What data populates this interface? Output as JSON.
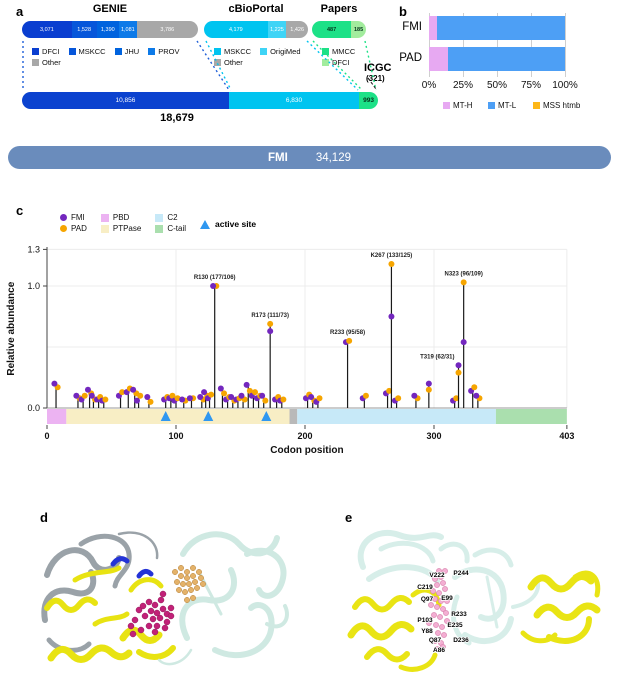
{
  "figure": {
    "panel_labels": {
      "a": "a",
      "b": "b",
      "c": "c",
      "d": "d",
      "e": "e"
    }
  },
  "chart_data": [
    {
      "id": "genie",
      "type": "bar",
      "title": "GENIE",
      "total": 10856,
      "segments": [
        {
          "label": "DFCI",
          "display": "3,071",
          "value": 3071,
          "color": "#0a3ed0"
        },
        {
          "label": "MSKCC",
          "display": "1,528",
          "value": 1528,
          "color": "#0656da"
        },
        {
          "label": "JHU",
          "display": "1,390",
          "value": 1390,
          "color": "#0063de"
        },
        {
          "label": "PROV",
          "display": "1,081",
          "value": 1081,
          "color": "#0d7ae8"
        },
        {
          "label": "Other",
          "display": "3,786",
          "value": 3786,
          "color": "#a8a8a8"
        }
      ],
      "legend_rows": [
        [
          "DFCI",
          "MSKCC",
          "JHU",
          "PROV"
        ],
        [
          "Other"
        ]
      ]
    },
    {
      "id": "cbioportal",
      "type": "bar",
      "title": "cBioPortal",
      "total": 6830,
      "segments": [
        {
          "label": "MSKCC",
          "display": "4,179",
          "value": 4179,
          "color": "#00c4f0"
        },
        {
          "label": "OrigiMed",
          "display": "1,225",
          "value": 1225,
          "color": "#3fd4f6"
        },
        {
          "label": "Other",
          "display": "1,426",
          "value": 1426,
          "color": "#a8a8a8"
        }
      ],
      "legend_rows": [
        [
          "MSKCC",
          "OrigiMed"
        ],
        [
          "Other"
        ]
      ]
    },
    {
      "id": "papers",
      "type": "bar",
      "title": "Papers",
      "total": 672,
      "segments": [
        {
          "label": "MMCC",
          "display": "487",
          "value": 487,
          "color": "#1de187",
          "text_color": "#05371e"
        },
        {
          "label": "DFCI",
          "display": "185",
          "value": 185,
          "color": "#a2ec9d",
          "text_color": "#05371e"
        }
      ],
      "legend_rows": [
        [
          "MMCC"
        ],
        [
          "DFCI"
        ]
      ],
      "annotation": {
        "label": "ICGC",
        "value": "(321)"
      }
    },
    {
      "id": "combined",
      "type": "bar",
      "total": 18679,
      "total_display": "18,679",
      "segments": [
        {
          "label": "GENIE",
          "display": "10,856",
          "value": 10856,
          "color": "#0b42cf"
        },
        {
          "label": "cBioPortal",
          "display": "6,830",
          "value": 6830,
          "color": "#00c4f0"
        },
        {
          "label": "ICGC",
          "display": "993",
          "value": 993,
          "color": "#1de187",
          "text_color": "#06321c"
        }
      ]
    },
    {
      "id": "fmi-total",
      "type": "bar",
      "label": "FMI",
      "display": "34,129",
      "color": "#6a8cbc"
    },
    {
      "id": "tmb",
      "type": "bar",
      "orientation": "horizontal-stacked",
      "categories": [
        "FMI",
        "PAD"
      ],
      "series": [
        {
          "name": "MT-H",
          "color": "#e7a9f2",
          "values": [
            6,
            14
          ]
        },
        {
          "name": "MT-L",
          "color": "#4d9ff5",
          "values": [
            94,
            86
          ]
        },
        {
          "name": "MSS htmb",
          "color": "#fdb718",
          "values": [
            0,
            0
          ]
        }
      ],
      "xticks": [
        "0%",
        "25%",
        "50%",
        "75%",
        "100%"
      ],
      "xlim": [
        0,
        100
      ]
    },
    {
      "id": "lollipop",
      "type": "scatter",
      "xlabel": "Codon position",
      "ylabel": "Relative abundance",
      "xlim": [
        0,
        403
      ],
      "ylim": [
        0,
        1.3
      ],
      "yticks": [
        {
          "label": "0.0",
          "value": 0
        },
        {
          "label": "1.0",
          "value": 1
        },
        {
          "label": "1.3",
          "value": 1.3
        }
      ],
      "xticks": [
        {
          "label": "0",
          "value": 0
        },
        {
          "label": "100",
          "value": 100
        },
        {
          "label": "200",
          "value": 200
        },
        {
          "label": "300",
          "value": 300
        },
        {
          "label": "403",
          "value": 403
        }
      ],
      "gridlines_y": [
        0.5,
        1.0,
        1.3
      ],
      "series_legend": [
        {
          "label": "FMI",
          "color": "#7327be"
        },
        {
          "label": "PAD",
          "color": "#f6a500"
        }
      ],
      "active_site": {
        "label": "active site",
        "color": "#2f97f0",
        "positions": [
          92,
          125,
          170
        ]
      },
      "domains": [
        {
          "name": "PBD",
          "color": "#ecb3f2",
          "start": 0,
          "end": 15
        },
        {
          "name": "PTPase",
          "color": "#f8eec5",
          "start": 15,
          "end": 188
        },
        {
          "name": "",
          "color": "#b9b9b9",
          "start": 188,
          "end": 194
        },
        {
          "name": "C2",
          "color": "#c7e9f8",
          "start": 194,
          "end": 348
        },
        {
          "name": "C-tail",
          "color": "#aadfae",
          "start": 348,
          "end": 403
        }
      ],
      "domain_legend": [
        [
          "PBD",
          "C2"
        ],
        [
          "PTPase",
          "C-tail"
        ]
      ],
      "points": [
        {
          "pos": 7,
          "fmi": 0.2,
          "pad": 0.17
        },
        {
          "pos": 24,
          "fmi": 0.1,
          "pad": 0.08
        },
        {
          "pos": 28,
          "fmi": 0.07,
          "pad": 0.1
        },
        {
          "pos": 33,
          "fmi": 0.15,
          "pad": 0.12
        },
        {
          "pos": 36,
          "fmi": 0.1,
          "pad": 0.07
        },
        {
          "pos": 40,
          "fmi": 0.07,
          "pad": 0.09
        },
        {
          "pos": 44,
          "fmi": 0.06,
          "pad": 0.07
        },
        {
          "pos": 57,
          "fmi": 0.1,
          "pad": 0.13
        },
        {
          "pos": 63,
          "fmi": 0.13,
          "pad": 0.16
        },
        {
          "pos": 68,
          "fmi": 0.15,
          "pad": 0.12
        },
        {
          "pos": 71,
          "fmi": 0.06,
          "pad": 0.1
        },
        {
          "pos": 79,
          "fmi": 0.09,
          "pad": 0.05
        },
        {
          "pos": 92,
          "fmi": 0.07,
          "pad": 0.09
        },
        {
          "pos": 96,
          "fmi": 0.08,
          "pad": 0.1
        },
        {
          "pos": 100,
          "fmi": 0.06,
          "pad": 0.08
        },
        {
          "pos": 106,
          "fmi": 0.07,
          "pad": 0.06
        },
        {
          "pos": 112,
          "fmi": 0.08,
          "pad": 0.08
        },
        {
          "pos": 120,
          "fmi": 0.09,
          "pad": 0.07
        },
        {
          "pos": 123,
          "fmi": 0.13,
          "pad": 0.1
        },
        {
          "pos": 126,
          "fmi": 0.08,
          "pad": 0.11
        },
        {
          "pos": 130,
          "fmi": 1.0,
          "pad": 1.0,
          "label": "R130 (177/106)"
        },
        {
          "pos": 136,
          "fmi": 0.16,
          "pad": 0.12
        },
        {
          "pos": 140,
          "fmi": 0.07,
          "pad": 0.09
        },
        {
          "pos": 144,
          "fmi": 0.09,
          "pad": 0.06
        },
        {
          "pos": 148,
          "fmi": 0.07,
          "pad": 0.08
        },
        {
          "pos": 152,
          "fmi": 0.1,
          "pad": 0.07
        },
        {
          "pos": 156,
          "fmi": 0.19,
          "pad": 0.14
        },
        {
          "pos": 160,
          "fmi": 0.1,
          "pad": 0.13
        },
        {
          "pos": 164,
          "fmi": 0.08,
          "pad": 0.1
        },
        {
          "pos": 168,
          "fmi": 0.1,
          "pad": 0.06
        },
        {
          "pos": 173,
          "fmi": 0.63,
          "pad": 0.69,
          "label": "R173 (111/73)"
        },
        {
          "pos": 178,
          "fmi": 0.07,
          "pad": 0.09
        },
        {
          "pos": 182,
          "fmi": 0.06,
          "pad": 0.07
        },
        {
          "pos": 202,
          "fmi": 0.08,
          "pad": 0.11
        },
        {
          "pos": 206,
          "fmi": 0.09,
          "pad": 0.06
        },
        {
          "pos": 210,
          "fmi": 0.05,
          "pad": 0.08
        },
        {
          "pos": 233,
          "fmi": 0.54,
          "pad": 0.55,
          "label": "R233 (95/58)"
        },
        {
          "pos": 246,
          "fmi": 0.08,
          "pad": 0.1
        },
        {
          "pos": 264,
          "fmi": 0.12,
          "pad": 0.14
        },
        {
          "pos": 267,
          "fmi": 0.75,
          "pad": 1.18,
          "label": "K267 (133/125)"
        },
        {
          "pos": 271,
          "fmi": 0.06,
          "pad": 0.08
        },
        {
          "pos": 286,
          "fmi": 0.1,
          "pad": 0.08
        },
        {
          "pos": 296,
          "fmi": 0.2,
          "pad": 0.15
        },
        {
          "pos": 316,
          "fmi": 0.06,
          "pad": 0.08
        },
        {
          "pos": 319,
          "fmi": 0.35,
          "pad": 0.29,
          "label": "T319 (62/31)"
        },
        {
          "pos": 323,
          "fmi": 0.54,
          "pad": 1.03,
          "label": "N323 (96/109)"
        },
        {
          "pos": 330,
          "fmi": 0.14,
          "pad": 0.17
        },
        {
          "pos": 334,
          "fmi": 0.1,
          "pad": 0.08
        }
      ]
    }
  ],
  "panel_e": {
    "residues": [
      "V222",
      "P244",
      "C219",
      "Q97",
      "E99",
      "P103",
      "Y88",
      "R233",
      "E235",
      "Q87",
      "D236",
      "A86"
    ]
  }
}
